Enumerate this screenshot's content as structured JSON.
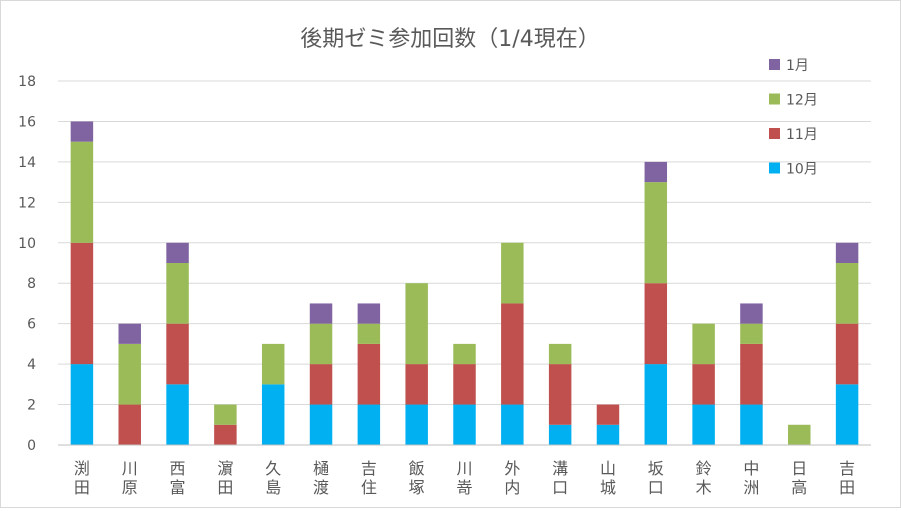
{
  "chart_data": {
    "type": "bar",
    "stacked": true,
    "title": "後期ゼミ参加回数（1/4現在）",
    "xlabel": "",
    "ylabel": "",
    "ylim": [
      0,
      18
    ],
    "yticks": [
      0,
      2,
      4,
      6,
      8,
      10,
      12,
      14,
      16,
      18
    ],
    "grid": true,
    "legend_position": "top-right",
    "categories": [
      "渕田",
      "川原",
      "西富",
      "濵田",
      "久島",
      "樋渡",
      "吉住",
      "飯塚",
      "川嵜",
      "外内",
      "溝口",
      "山城",
      "坂口",
      "鈴木",
      "中洲",
      "日高",
      "吉田"
    ],
    "series": [
      {
        "name": "10月",
        "color": "#00b0f0",
        "values": [
          4,
          0,
          3,
          0,
          3,
          2,
          2,
          2,
          2,
          2,
          1,
          1,
          4,
          2,
          2,
          0,
          3
        ]
      },
      {
        "name": "11月",
        "color": "#c0504d",
        "values": [
          6,
          2,
          3,
          1,
          0,
          2,
          3,
          2,
          2,
          5,
          3,
          1,
          4,
          2,
          3,
          0,
          3
        ]
      },
      {
        "name": "12月",
        "color": "#9bbb59",
        "values": [
          5,
          3,
          3,
          1,
          2,
          2,
          1,
          4,
          1,
          3,
          1,
          0,
          5,
          2,
          1,
          1,
          3
        ]
      },
      {
        "name": "1月",
        "color": "#8064a2",
        "values": [
          1,
          1,
          1,
          0,
          0,
          1,
          1,
          0,
          0,
          0,
          0,
          0,
          1,
          0,
          1,
          0,
          1
        ]
      }
    ]
  }
}
